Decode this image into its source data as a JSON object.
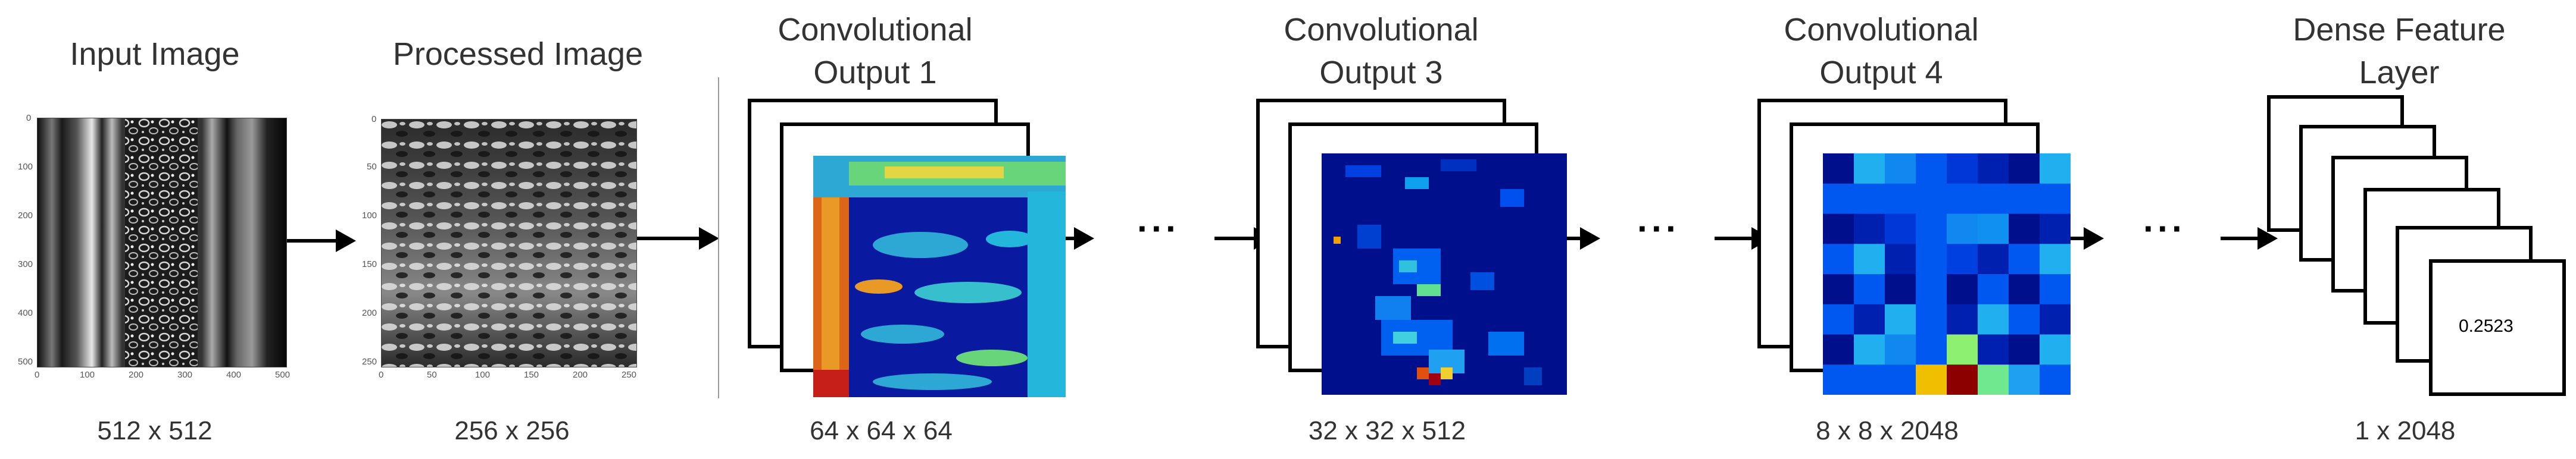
{
  "panels": [
    {
      "title": "Input Image",
      "dims": "512 x 512",
      "x_ticks": [
        "0",
        "100",
        "200",
        "300",
        "400",
        "500"
      ],
      "y_ticks": [
        "0",
        "100",
        "200",
        "300",
        "400",
        "500"
      ]
    },
    {
      "title": "Processed Image",
      "dims": "256 x 256",
      "x_ticks": [
        "0",
        "50",
        "100",
        "150",
        "200",
        "250"
      ],
      "y_ticks": [
        "0",
        "50",
        "100",
        "150",
        "200",
        "250"
      ]
    },
    {
      "title_line1": "Convolutional",
      "title_line2": "Output 1",
      "dims": "64 x 64 x 64"
    },
    {
      "title_line1": "Convolutional",
      "title_line2": "Output 3",
      "dims": "32 x 32 x 512"
    },
    {
      "title_line1": "Convolutional",
      "title_line2": "Output 4",
      "dims": "8 x 8 x 2048"
    },
    {
      "title_line1": "Dense Feature",
      "title_line2": "Layer",
      "dims": "1 x 2048",
      "value": "0.2523"
    }
  ],
  "ellipsis": "···",
  "colors": {
    "line": "#000000",
    "background": "#ffffff",
    "separator": "#9a9a9a"
  }
}
